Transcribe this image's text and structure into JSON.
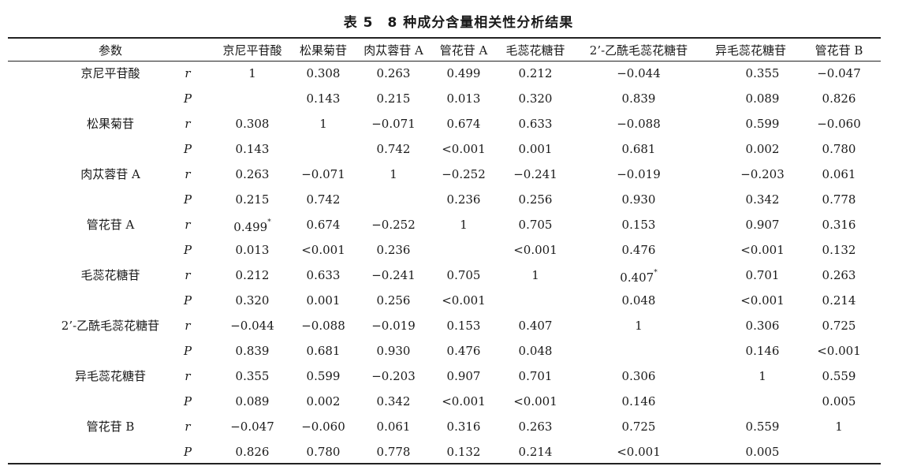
{
  "title": "表 5　8 种成分含量相关性分析结果",
  "header": {
    "param_label": "参数",
    "columns": [
      "京尼平苷酸",
      "松果菊苷",
      "肉苁蓉苷 A",
      "管花苷 A",
      "毛蕊花糖苷",
      "2’-乙酰毛蕊花糖苷",
      "异毛蕊花糖苷",
      "管花苷 B"
    ]
  },
  "rows": [
    {
      "param": "京尼平苷酸",
      "stat": "r",
      "values": [
        "1",
        "0.308",
        "0.263",
        "0.499",
        "0.212",
        "−0.044",
        "0.355",
        "−0.047"
      ]
    },
    {
      "param": "",
      "stat": "P",
      "values": [
        "",
        "0.143",
        "0.215",
        "0.013",
        "0.320",
        "0.839",
        "0.089",
        "0.826"
      ]
    },
    {
      "param": "松果菊苷",
      "stat": "r",
      "values": [
        "0.308",
        "1",
        "−0.071",
        "0.674",
        "0.633",
        "−0.088",
        "0.599",
        "−0.060"
      ]
    },
    {
      "param": "",
      "stat": "P",
      "values": [
        "0.143",
        "",
        "0.742",
        "<0.001",
        "0.001",
        "0.681",
        "0.002",
        "0.780"
      ]
    },
    {
      "param": "肉苁蓉苷 A",
      "stat": "r",
      "values": [
        "0.263",
        "−0.071",
        "1",
        "−0.252",
        "−0.241",
        "−0.019",
        "−0.203",
        "0.061"
      ]
    },
    {
      "param": "",
      "stat": "P",
      "values": [
        "0.215",
        "0.742",
        "",
        "0.236",
        "0.256",
        "0.930",
        "0.342",
        "0.778"
      ]
    },
    {
      "param": "管花苷 A",
      "stat": "r",
      "values": [
        "0.499*",
        "0.674",
        "−0.252",
        "1",
        "0.705",
        "0.153",
        "0.907",
        "0.316"
      ]
    },
    {
      "param": "",
      "stat": "P",
      "values": [
        "0.013",
        "<0.001",
        "0.236",
        "",
        "<0.001",
        "0.476",
        "<0.001",
        "0.132"
      ]
    },
    {
      "param": "毛蕊花糖苷",
      "stat": "r",
      "values": [
        "0.212",
        "0.633",
        "−0.241",
        "0.705",
        "1",
        "0.407*",
        "0.701",
        "0.263"
      ]
    },
    {
      "param": "",
      "stat": "P",
      "values": [
        "0.320",
        "0.001",
        "0.256",
        "<0.001",
        "",
        "0.048",
        "<0.001",
        "0.214"
      ]
    },
    {
      "param": "2’-乙酰毛蕊花糖苷",
      "stat": "r",
      "values": [
        "−0.044",
        "−0.088",
        "−0.019",
        "0.153",
        "0.407",
        "1",
        "0.306",
        "0.725"
      ]
    },
    {
      "param": "",
      "stat": "P",
      "values": [
        "0.839",
        "0.681",
        "0.930",
        "0.476",
        "0.048",
        "",
        "0.146",
        "<0.001"
      ]
    },
    {
      "param": "异毛蕊花糖苷",
      "stat": "r",
      "values": [
        "0.355",
        "0.599",
        "−0.203",
        "0.907",
        "0.701",
        "0.306",
        "1",
        "0.559"
      ]
    },
    {
      "param": "",
      "stat": "P",
      "values": [
        "0.089",
        "0.002",
        "0.342",
        "<0.001",
        "<0.001",
        "0.146",
        "",
        "0.005"
      ]
    },
    {
      "param": "管花苷 B",
      "stat": "r",
      "values": [
        "−0.047",
        "−0.060",
        "0.061",
        "0.316",
        "0.263",
        "0.725",
        "0.559",
        "1"
      ]
    },
    {
      "param": "",
      "stat": "P",
      "values": [
        "0.826",
        "0.780",
        "0.778",
        "0.132",
        "0.214",
        "<0.001",
        "0.005",
        ""
      ]
    }
  ]
}
